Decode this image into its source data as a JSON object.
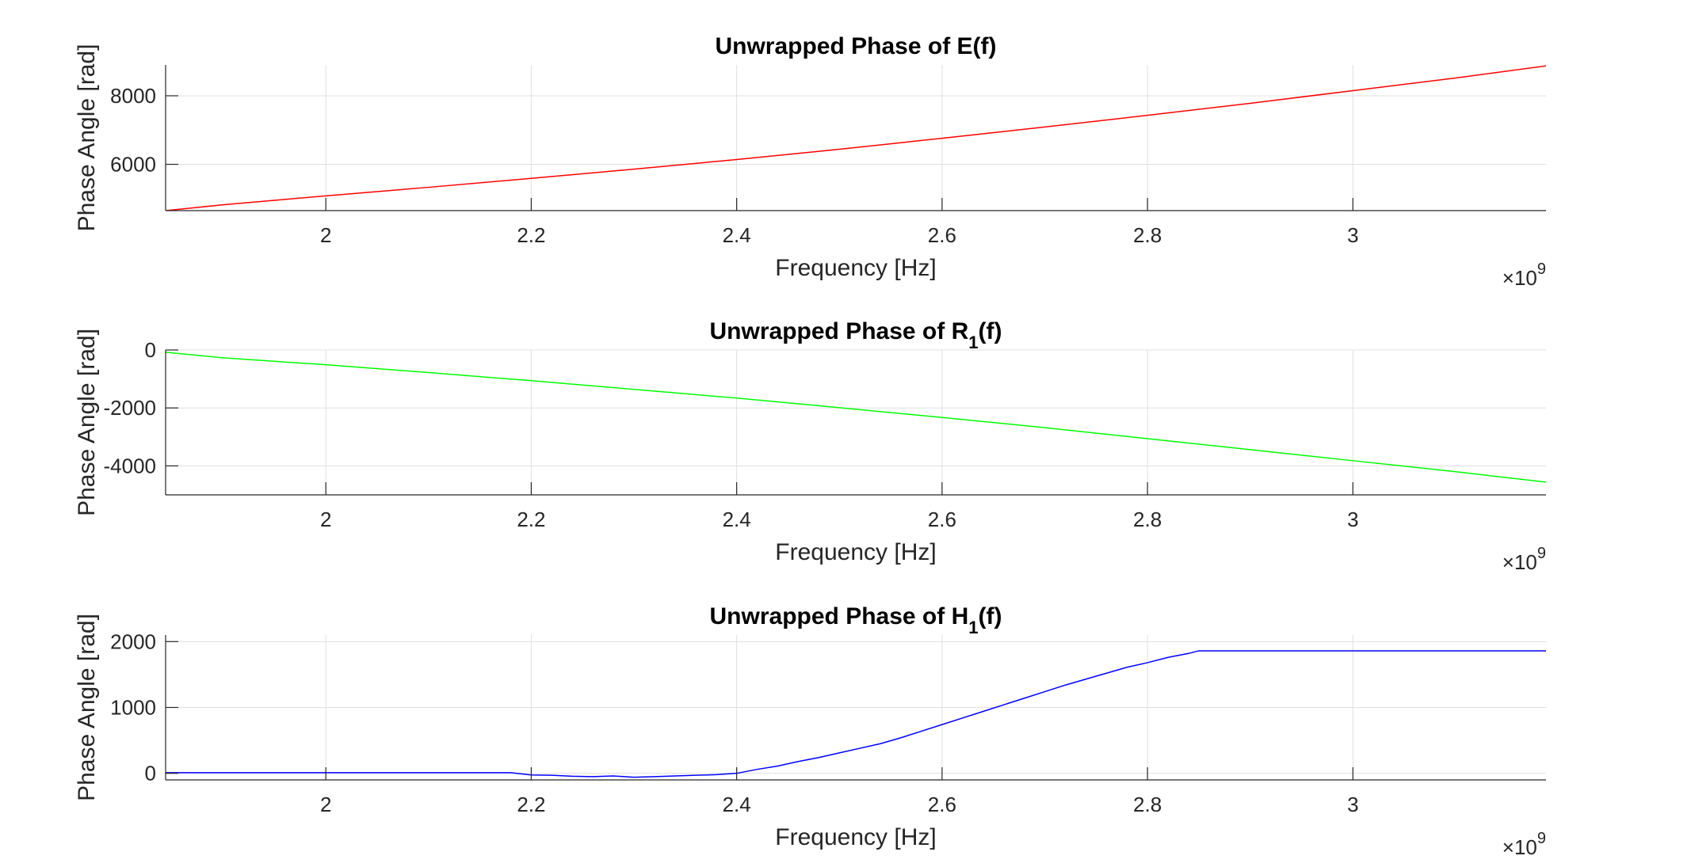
{
  "chart_data": [
    {
      "type": "line",
      "title": "Unwrapped Phase of E(f)",
      "title_main": "Unwrapped Phase of E",
      "title_sub": "",
      "title_end": "(f)",
      "xlabel": "Frequency [Hz]",
      "ylabel": "Phase Angle [rad]",
      "x_exponent_base": "×10",
      "x_exponent": "9",
      "xlim": [
        1.844,
        3.188
      ],
      "ylim": [
        4650,
        8900
      ],
      "xticks": [
        2,
        2.2,
        2.4,
        2.6,
        2.8,
        3
      ],
      "xtick_labels": [
        "2",
        "2.2",
        "2.4",
        "2.6",
        "2.8",
        "3"
      ],
      "yticks": [
        6000,
        8000
      ],
      "ytick_labels": [
        "6000",
        "8000"
      ],
      "grid": true,
      "series": [
        {
          "color": "#ff0000",
          "x": [
            1.844,
            1.9,
            2.0,
            2.1,
            2.2,
            2.3,
            2.4,
            2.5,
            2.6,
            2.7,
            2.8,
            2.9,
            3.0,
            3.1,
            3.188
          ],
          "y": [
            4650,
            4820,
            5080,
            5330,
            5590,
            5860,
            6140,
            6440,
            6760,
            7090,
            7430,
            7780,
            8150,
            8520,
            8870
          ]
        }
      ]
    },
    {
      "type": "line",
      "title": "Unwrapped Phase of R1(f)",
      "title_main": "Unwrapped Phase of R",
      "title_sub": "1",
      "title_end": "(f)",
      "xlabel": "Frequency [Hz]",
      "ylabel": "Phase Angle [rad]",
      "x_exponent_base": "×10",
      "x_exponent": "9",
      "xlim": [
        1.844,
        3.188
      ],
      "ylim": [
        -5000,
        0
      ],
      "xticks": [
        2,
        2.2,
        2.4,
        2.6,
        2.8,
        3
      ],
      "xtick_labels": [
        "2",
        "2.2",
        "2.4",
        "2.6",
        "2.8",
        "3"
      ],
      "yticks": [
        -4000,
        -2000,
        0
      ],
      "ytick_labels": [
        "-4000",
        "-2000",
        "0"
      ],
      "grid": true,
      "series": [
        {
          "color": "#00ff00",
          "x": [
            1.844,
            1.9,
            2.0,
            2.1,
            2.2,
            2.3,
            2.4,
            2.5,
            2.6,
            2.7,
            2.8,
            2.9,
            3.0,
            3.1,
            3.188
          ],
          "y": [
            -80,
            -270,
            -510,
            -780,
            -1060,
            -1360,
            -1660,
            -1990,
            -2330,
            -2680,
            -3060,
            -3440,
            -3820,
            -4200,
            -4560
          ]
        }
      ]
    },
    {
      "type": "line",
      "title": "Unwrapped Phase of H1(f)",
      "title_main": "Unwrapped Phase of H",
      "title_sub": "1",
      "title_end": "(f)",
      "xlabel": "Frequency [Hz]",
      "ylabel": "Phase Angle [rad]",
      "x_exponent_base": "×10",
      "x_exponent": "9",
      "xlim": [
        1.844,
        3.188
      ],
      "ylim": [
        -100,
        2100
      ],
      "xticks": [
        2,
        2.2,
        2.4,
        2.6,
        2.8,
        3
      ],
      "xtick_labels": [
        "2",
        "2.2",
        "2.4",
        "2.6",
        "2.8",
        "3"
      ],
      "yticks": [
        0,
        1000,
        2000
      ],
      "ytick_labels": [
        "0",
        "1000",
        "2000"
      ],
      "grid": true,
      "series": [
        {
          "color": "#0000ff",
          "x": [
            1.844,
            2.0,
            2.18,
            2.2,
            2.22,
            2.24,
            2.26,
            2.28,
            2.3,
            2.32,
            2.34,
            2.36,
            2.38,
            2.4,
            2.42,
            2.44,
            2.46,
            2.48,
            2.5,
            2.52,
            2.54,
            2.56,
            2.58,
            2.6,
            2.62,
            2.64,
            2.66,
            2.68,
            2.7,
            2.72,
            2.74,
            2.76,
            2.78,
            2.8,
            2.82,
            2.84,
            2.85,
            2.9,
            3.0,
            3.1,
            3.188
          ],
          "y": [
            10,
            10,
            10,
            -25,
            -30,
            -45,
            -50,
            -40,
            -60,
            -50,
            -40,
            -30,
            -20,
            0,
            60,
            110,
            180,
            240,
            310,
            380,
            450,
            540,
            640,
            740,
            840,
            940,
            1040,
            1140,
            1240,
            1340,
            1430,
            1520,
            1610,
            1680,
            1760,
            1820,
            1860,
            1860,
            1860,
            1860,
            1860
          ]
        }
      ]
    }
  ]
}
